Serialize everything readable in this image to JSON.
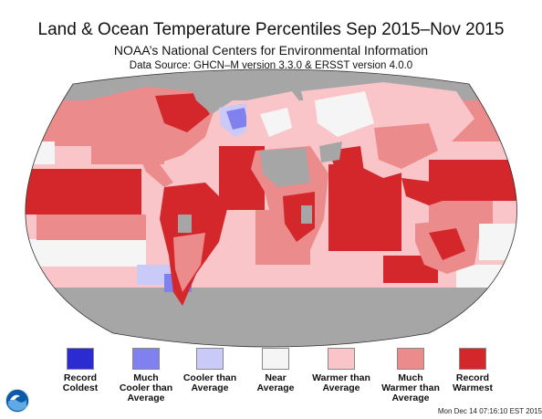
{
  "header": {
    "title": "Land & Ocean Temperature Percentiles Sep 2015–Nov 2015",
    "subtitle": "NOAA’s National Centers for Environmental Information",
    "source": "Data Source: GHCN–M version 3.3.0 & ERSST version 4.0.0"
  },
  "legend": [
    {
      "label": "Record\nColdest",
      "color": "#2b2bd1"
    },
    {
      "label": "Much\nCooler than\nAverage",
      "color": "#8080ee"
    },
    {
      "label": "Cooler than\nAverage",
      "color": "#cacaf8"
    },
    {
      "label": "Near\nAverage",
      "color": "#f5f5f5"
    },
    {
      "label": "Warmer than\nAverage",
      "color": "#f9c5c8"
    },
    {
      "label": "Much\nWarmer than\nAverage",
      "color": "#ec8b8c"
    },
    {
      "label": "Record\nWarmest",
      "color": "#d3272b"
    }
  ],
  "colors": {
    "no_data": "#a6a6a6",
    "record_warmest": "#d3272b",
    "much_warmer": "#ec8b8c",
    "warmer": "#f9c5c8",
    "near": "#f5f5f5",
    "cooler": "#cacaf8",
    "much_cooler": "#8080ee"
  },
  "logo": {
    "icon": "noaa-logo-icon"
  },
  "footer": {
    "timestamp": "Mon Dec 14 07:16:10 EST 2015"
  }
}
